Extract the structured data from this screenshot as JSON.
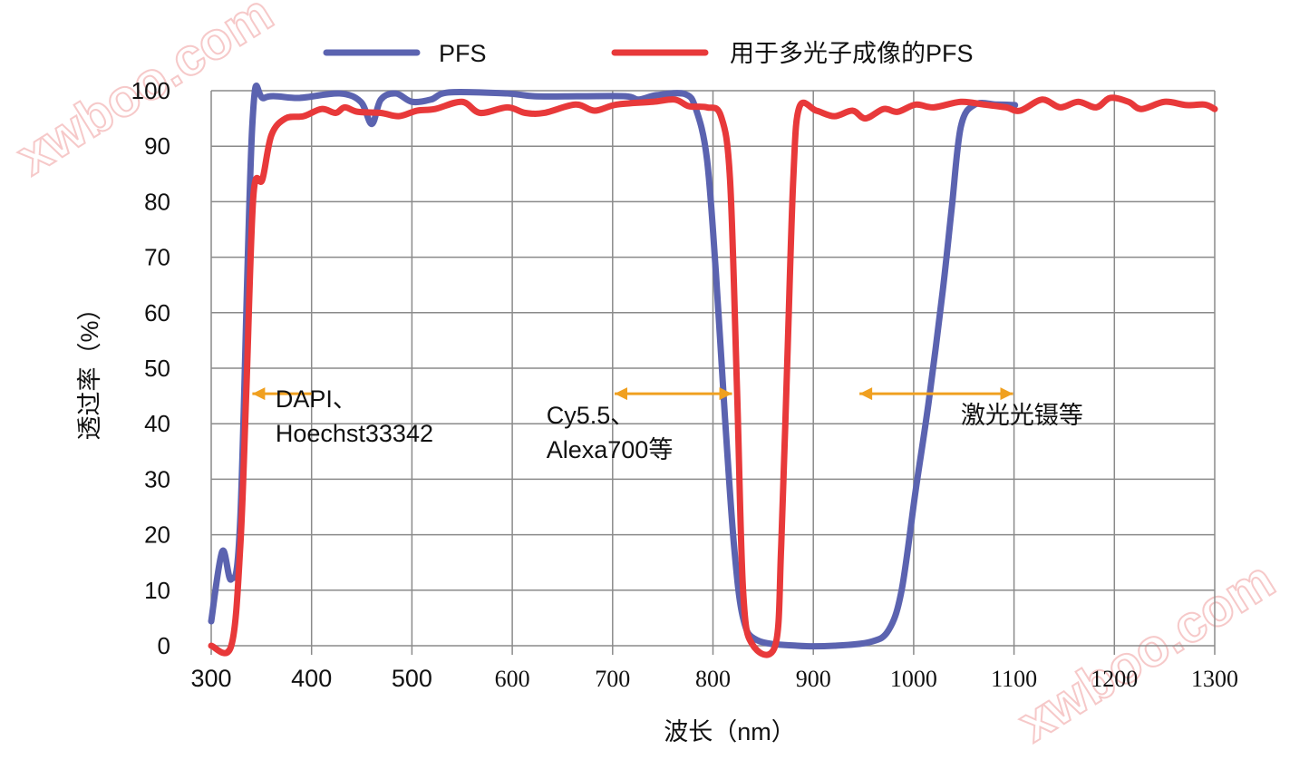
{
  "chart_data": {
    "type": "line",
    "title": "",
    "xlabel": "波长（nm）",
    "ylabel": "透过率（%）",
    "xlim": [
      300,
      1300
    ],
    "ylim": [
      0,
      100
    ],
    "xticks": [
      300,
      400,
      500,
      600,
      700,
      800,
      900,
      1000,
      1100,
      1200,
      1300
    ],
    "yticks": [
      0,
      10,
      20,
      30,
      40,
      50,
      60,
      70,
      80,
      90,
      100
    ],
    "grid": true,
    "legend_position": "top",
    "series": [
      {
        "name": "PFS",
        "color": "#5b63b0",
        "x": [
          300,
          311,
          320,
          329,
          341,
          353,
          388,
          428,
          449,
          460,
          469,
          484,
          500,
          519,
          537,
          595,
          622,
          668,
          713,
          726,
          744,
          772,
          783,
          794,
          803,
          812,
          821,
          830,
          844,
          884,
          921,
          957,
          975,
          988,
          1002,
          1015,
          1029,
          1038,
          1047,
          1061,
          1083,
          1101
        ],
        "y": [
          4.4,
          17,
          12,
          23,
          94,
          98.7,
          98.7,
          99.5,
          98,
          94,
          98.4,
          99.5,
          98,
          98.4,
          99.7,
          99.5,
          99,
          99,
          99,
          98.4,
          99.2,
          99.4,
          96.7,
          87.7,
          67,
          41,
          18,
          5,
          1,
          0,
          0,
          0.7,
          2.8,
          10,
          28,
          44,
          64,
          79,
          93.5,
          97.5,
          97.5,
          97.4
        ]
      },
      {
        "name": "用于多光子成像的PFS",
        "color": "#e8393a",
        "x": [
          300,
          320,
          329,
          335,
          342,
          351,
          360,
          374,
          392,
          410,
          424,
          433,
          446,
          469,
          487,
          505,
          523,
          550,
          568,
          595,
          613,
          632,
          663,
          682,
          704,
          740,
          762,
          776,
          794,
          808,
          817,
          824,
          830,
          839,
          862,
          868,
          874,
          880,
          886,
          903,
          921,
          939,
          952,
          970,
          984,
          1002,
          1020,
          1047,
          1070,
          1092,
          1106,
          1128,
          1146,
          1164,
          1182,
          1196,
          1214,
          1227,
          1250,
          1272,
          1290,
          1300
        ],
        "y": [
          0,
          0,
          18,
          46,
          81,
          84,
          92,
          95,
          95.4,
          96.7,
          96,
          97,
          96.2,
          96,
          95.4,
          96.4,
          96.7,
          98,
          96,
          97,
          96,
          96,
          97.5,
          96.4,
          97.5,
          98,
          98.4,
          97.2,
          97,
          95.4,
          84,
          46,
          10,
          0.3,
          0,
          18,
          51,
          84,
          97,
          96.4,
          95.4,
          96.4,
          95,
          96.7,
          96.2,
          97.5,
          97,
          98,
          97.5,
          97,
          96.4,
          98.4,
          97,
          98,
          97,
          98.7,
          98,
          96.7,
          98,
          97.4,
          97.5,
          96.7
        ]
      }
    ],
    "annotations": [
      {
        "lines": [
          "DAPI、",
          "Hoechst33342"
        ],
        "arrow": [
          400,
          341
        ],
        "arrow_y": 45.4,
        "heads": "left",
        "text_x": 364,
        "text_y": 43
      },
      {
        "lines": [
          "Cy5.5、",
          "Alexa700等"
        ],
        "arrow": [
          702,
          819
        ],
        "arrow_y": 45.4,
        "heads": "both",
        "text_x": 634,
        "text_y": 40
      },
      {
        "lines": [
          "激光光镊等"
        ],
        "arrow": [
          946,
          1099
        ],
        "arrow_y": 45.4,
        "heads": "both",
        "text_x": 1047,
        "text_y": 40
      }
    ],
    "annotation_color": "#f0a020"
  },
  "watermark": "xwboo.com"
}
